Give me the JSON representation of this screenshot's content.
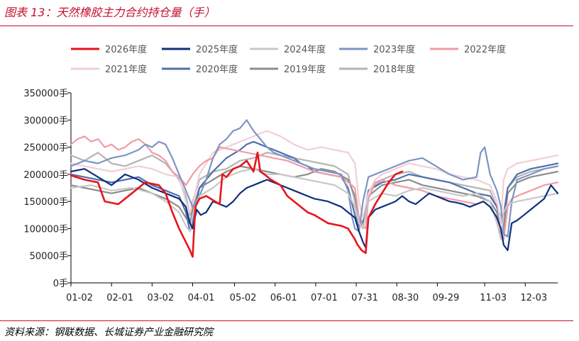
{
  "header": {
    "title": "图表 13：天然橡胶主力合约持仓量（手）"
  },
  "footer": {
    "source": "资料来源：钢联数据、长城证券产业金融研究院"
  },
  "chart_data": {
    "type": "line",
    "title": "",
    "xlabel": "",
    "ylabel": "",
    "ylim": [
      0,
      350000
    ],
    "y_ticks": [
      {
        "value": 0,
        "label": "0手"
      },
      {
        "value": 50000,
        "label": "50000手"
      },
      {
        "value": 100000,
        "label": "100000手"
      },
      {
        "value": 150000,
        "label": "150000手"
      },
      {
        "value": 200000,
        "label": "200000手"
      },
      {
        "value": 250000,
        "label": "250000手"
      },
      {
        "value": 300000,
        "label": "300000手"
      },
      {
        "value": 350000,
        "label": "350000手"
      }
    ],
    "x_tick_labels": [
      "01-02",
      "02-01",
      "03-02",
      "04-01",
      "05-02",
      "06-01",
      "07-01",
      "07-31",
      "08-30",
      "09-29",
      "11-03",
      "12-03"
    ],
    "x_day_range": [
      0,
      360
    ],
    "x_ticks_days": [
      0,
      30,
      60,
      90,
      121,
      151,
      181,
      211,
      241,
      271,
      306,
      336
    ],
    "legend": {
      "position": "top",
      "columns": 5
    },
    "grid": false,
    "series": [
      {
        "name": "2026年度",
        "color": "#e8141a",
        "width": 2.6,
        "x": [
          0,
          10,
          20,
          25,
          35,
          45,
          55,
          65,
          70,
          75,
          80,
          85,
          88,
          90,
          92,
          95,
          100,
          110,
          112,
          115,
          120,
          125,
          130,
          135,
          138,
          140,
          143,
          148,
          155,
          160,
          165,
          170,
          175,
          180,
          190,
          200,
          205,
          210,
          212,
          215,
          218,
          220,
          225,
          230,
          235,
          240,
          245
        ],
        "y": [
          198000,
          190000,
          185000,
          150000,
          145000,
          165000,
          185000,
          180000,
          165000,
          130000,
          100000,
          75000,
          60000,
          48000,
          140000,
          155000,
          160000,
          145000,
          200000,
          195000,
          210000,
          215000,
          225000,
          205000,
          240000,
          205000,
          200000,
          190000,
          180000,
          160000,
          150000,
          140000,
          130000,
          125000,
          110000,
          105000,
          100000,
          80000,
          70000,
          60000,
          55000,
          120000,
          145000,
          165000,
          185000,
          200000,
          205000
        ]
      },
      {
        "name": "2025年度",
        "color": "#0d2f7f",
        "width": 2.2,
        "x": [
          0,
          10,
          20,
          30,
          40,
          50,
          60,
          70,
          80,
          85,
          88,
          90,
          93,
          96,
          100,
          105,
          110,
          115,
          120,
          125,
          130,
          135,
          140,
          145,
          150,
          155,
          160,
          165,
          170,
          175,
          180,
          190,
          200,
          205,
          210,
          213,
          216,
          218,
          220,
          225,
          230,
          235,
          240,
          245,
          250,
          255,
          260,
          265,
          270,
          275,
          280,
          285,
          290,
          295,
          300,
          305,
          310,
          315,
          318,
          320,
          323,
          326,
          330,
          335,
          340,
          345,
          350,
          355,
          360
        ],
        "y": [
          205000,
          210000,
          195000,
          180000,
          200000,
          190000,
          175000,
          165000,
          155000,
          140000,
          110000,
          100000,
          135000,
          125000,
          130000,
          150000,
          145000,
          140000,
          150000,
          165000,
          175000,
          180000,
          185000,
          190000,
          185000,
          180000,
          175000,
          170000,
          165000,
          160000,
          155000,
          150000,
          140000,
          130000,
          120000,
          95000,
          75000,
          65000,
          120000,
          135000,
          140000,
          145000,
          150000,
          160000,
          150000,
          145000,
          155000,
          165000,
          160000,
          155000,
          150000,
          148000,
          145000,
          140000,
          145000,
          150000,
          140000,
          120000,
          100000,
          70000,
          60000,
          110000,
          115000,
          125000,
          135000,
          145000,
          155000,
          180000,
          165000
        ]
      },
      {
        "name": "2024年度",
        "color": "#c8c8c8",
        "width": 2.2,
        "x": [
          0,
          15,
          30,
          45,
          60,
          70,
          80,
          85,
          88,
          90,
          95,
          105,
          115,
          125,
          135,
          145,
          155,
          165,
          175,
          185,
          195,
          205,
          210,
          213,
          216,
          220,
          230,
          240,
          250,
          260,
          270,
          280,
          290,
          300,
          310,
          315,
          318,
          320,
          323,
          330,
          340,
          350,
          360
        ],
        "y": [
          175000,
          180000,
          170000,
          175000,
          165000,
          150000,
          130000,
          105000,
          95000,
          125000,
          160000,
          175000,
          195000,
          205000,
          210000,
          200000,
          200000,
          195000,
          190000,
          185000,
          180000,
          165000,
          140000,
          110000,
          100000,
          150000,
          165000,
          160000,
          170000,
          175000,
          170000,
          165000,
          160000,
          165000,
          150000,
          110000,
          80000,
          130000,
          145000,
          150000,
          155000,
          160000,
          165000
        ]
      },
      {
        "name": "2023年度",
        "color": "#7b96c4",
        "width": 2.2,
        "x": [
          0,
          10,
          20,
          30,
          40,
          50,
          55,
          60,
          65,
          70,
          75,
          80,
          85,
          90,
          95,
          100,
          105,
          110,
          115,
          120,
          125,
          130,
          135,
          140,
          145,
          150,
          155,
          160,
          170,
          180,
          190,
          200,
          205,
          208,
          210,
          213,
          216,
          220,
          230,
          240,
          250,
          260,
          270,
          280,
          290,
          300,
          303,
          306,
          310,
          315,
          318,
          320,
          323,
          326,
          330,
          340,
          350,
          360
        ],
        "y": [
          215000,
          225000,
          220000,
          230000,
          235000,
          245000,
          255000,
          250000,
          260000,
          255000,
          230000,
          200000,
          170000,
          140000,
          160000,
          190000,
          230000,
          255000,
          265000,
          280000,
          285000,
          300000,
          280000,
          265000,
          250000,
          240000,
          235000,
          230000,
          220000,
          210000,
          205000,
          200000,
          170000,
          120000,
          100000,
          95000,
          150000,
          195000,
          205000,
          215000,
          225000,
          230000,
          215000,
          200000,
          190000,
          195000,
          240000,
          250000,
          200000,
          170000,
          140000,
          90000,
          85000,
          150000,
          190000,
          200000,
          210000,
          215000
        ]
      },
      {
        "name": "2022年度",
        "color": "#f29aa7",
        "width": 2.2,
        "x": [
          0,
          5,
          10,
          15,
          20,
          25,
          30,
          35,
          40,
          45,
          50,
          55,
          60,
          65,
          70,
          75,
          80,
          85,
          90,
          95,
          100,
          105,
          110,
          120,
          130,
          140,
          150,
          160,
          170,
          180,
          190,
          200,
          210,
          213,
          216,
          218,
          220,
          225,
          230,
          240,
          250,
          260,
          270,
          280,
          290,
          300,
          305,
          310,
          315,
          318,
          320,
          323,
          326,
          330,
          340,
          350,
          360
        ],
        "y": [
          255000,
          265000,
          270000,
          260000,
          265000,
          250000,
          255000,
          245000,
          250000,
          260000,
          265000,
          255000,
          240000,
          235000,
          225000,
          205000,
          195000,
          180000,
          200000,
          215000,
          225000,
          230000,
          250000,
          245000,
          240000,
          235000,
          230000,
          225000,
          215000,
          205000,
          200000,
          195000,
          175000,
          120000,
          105000,
          100000,
          155000,
          185000,
          190000,
          180000,
          175000,
          170000,
          160000,
          155000,
          150000,
          145000,
          150000,
          140000,
          120000,
          95000,
          80000,
          140000,
          155000,
          160000,
          170000,
          180000,
          185000
        ]
      },
      {
        "name": "2021年度",
        "color": "#f1cfd6",
        "width": 2.2,
        "x": [
          0,
          10,
          20,
          30,
          40,
          50,
          60,
          70,
          80,
          85,
          88,
          90,
          95,
          105,
          115,
          125,
          135,
          140,
          145,
          150,
          155,
          165,
          175,
          185,
          195,
          205,
          210,
          213,
          216,
          220,
          225,
          230,
          240,
          250,
          260,
          270,
          280,
          290,
          300,
          310,
          315,
          318,
          320,
          323,
          330,
          340,
          350,
          360
        ],
        "y": [
          220000,
          215000,
          210000,
          205000,
          210000,
          215000,
          210000,
          200000,
          195000,
          150000,
          130000,
          145000,
          200000,
          240000,
          250000,
          260000,
          270000,
          275000,
          280000,
          275000,
          270000,
          255000,
          245000,
          250000,
          245000,
          240000,
          220000,
          150000,
          120000,
          165000,
          190000,
          200000,
          210000,
          220000,
          215000,
          210000,
          200000,
          195000,
          190000,
          180000,
          150000,
          110000,
          190000,
          210000,
          220000,
          225000,
          230000,
          235000
        ]
      },
      {
        "name": "2020年度",
        "color": "#4f6fae",
        "width": 2.2,
        "x": [
          0,
          10,
          20,
          30,
          40,
          50,
          60,
          70,
          80,
          85,
          88,
          90,
          95,
          105,
          115,
          125,
          130,
          135,
          140,
          145,
          150,
          155,
          160,
          165,
          170,
          175,
          180,
          190,
          200,
          205,
          210,
          213,
          216,
          220,
          230,
          240,
          250,
          260,
          270,
          280,
          290,
          300,
          310,
          315,
          318,
          320,
          323,
          330,
          340,
          350,
          360
        ],
        "y": [
          200000,
          195000,
          190000,
          185000,
          190000,
          195000,
          180000,
          170000,
          160000,
          130000,
          95000,
          110000,
          175000,
          205000,
          230000,
          245000,
          255000,
          260000,
          255000,
          250000,
          245000,
          240000,
          235000,
          230000,
          220000,
          215000,
          205000,
          200000,
          195000,
          175000,
          125000,
          105000,
          110000,
          170000,
          185000,
          190000,
          200000,
          195000,
          190000,
          185000,
          175000,
          165000,
          160000,
          140000,
          120000,
          125000,
          175000,
          200000,
          210000,
          215000,
          220000
        ]
      },
      {
        "name": "2019年度",
        "color": "#8c8c8c",
        "width": 2.2,
        "x": [
          0,
          10,
          20,
          30,
          40,
          50,
          60,
          70,
          80,
          85,
          88,
          90,
          95,
          105,
          115,
          125,
          135,
          145,
          155,
          165,
          175,
          185,
          195,
          205,
          210,
          213,
          216,
          220,
          230,
          240,
          250,
          260,
          270,
          280,
          290,
          300,
          310,
          315,
          318,
          320,
          323,
          330,
          340,
          350,
          360
        ],
        "y": [
          180000,
          175000,
          170000,
          165000,
          170000,
          175000,
          165000,
          155000,
          140000,
          120000,
          110000,
          135000,
          175000,
          190000,
          205000,
          215000,
          210000,
          205000,
          200000,
          195000,
          200000,
          210000,
          205000,
          190000,
          160000,
          120000,
          110000,
          160000,
          180000,
          185000,
          190000,
          180000,
          175000,
          170000,
          165000,
          160000,
          150000,
          130000,
          90000,
          100000,
          165000,
          185000,
          195000,
          200000,
          205000
        ]
      },
      {
        "name": "2018年度",
        "color": "#b4b4b4",
        "width": 2.2,
        "x": [
          0,
          10,
          20,
          30,
          40,
          50,
          60,
          70,
          80,
          85,
          88,
          90,
          95,
          105,
          115,
          125,
          135,
          145,
          155,
          165,
          175,
          185,
          195,
          205,
          210,
          213,
          216,
          220,
          230,
          240,
          250,
          260,
          270,
          280,
          290,
          300,
          310,
          315,
          318,
          320,
          323,
          330,
          340,
          350,
          360
        ],
        "y": [
          235000,
          225000,
          240000,
          220000,
          215000,
          225000,
          235000,
          220000,
          190000,
          160000,
          125000,
          150000,
          190000,
          205000,
          210000,
          225000,
          230000,
          240000,
          235000,
          230000,
          225000,
          220000,
          215000,
          200000,
          150000,
          110000,
          100000,
          170000,
          190000,
          200000,
          205000,
          195000,
          190000,
          185000,
          180000,
          175000,
          170000,
          140000,
          90000,
          110000,
          175000,
          195000,
          205000,
          210000,
          215000
        ]
      }
    ]
  }
}
